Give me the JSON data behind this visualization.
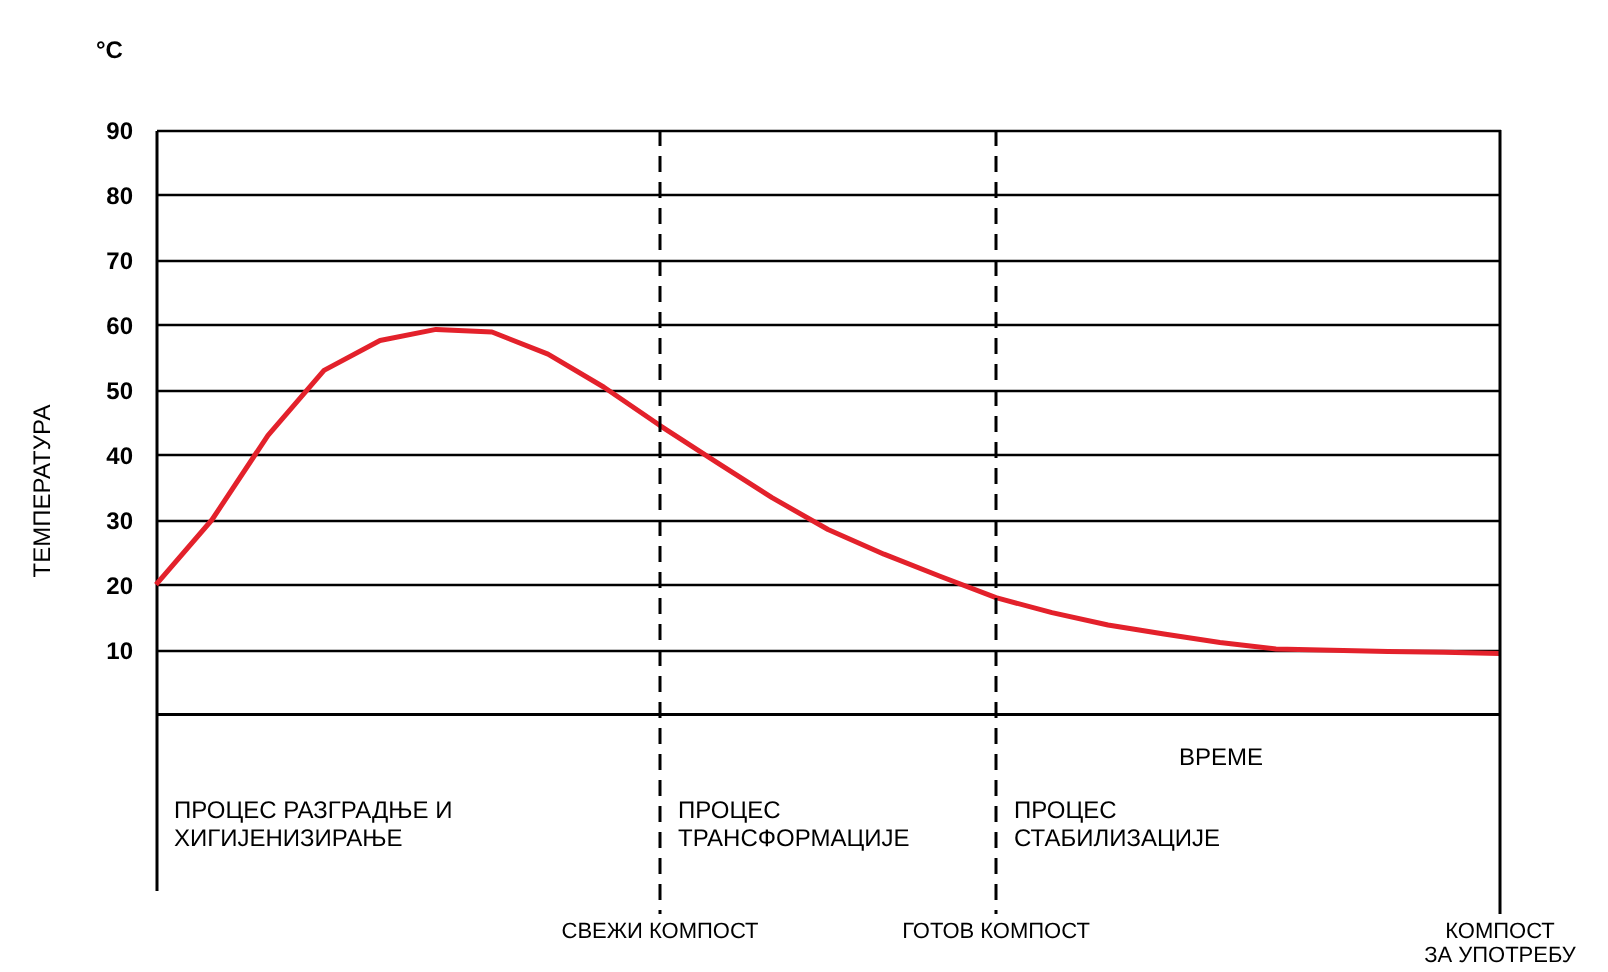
{
  "chart_data": {
    "type": "line",
    "ylabel": "ТЕМПЕРАТУРА",
    "xlabel": "ВРЕМЕ",
    "categories": [
      null,
      null,
      null,
      null,
      null,
      null,
      null,
      null,
      null,
      "СВЕЖИ КОМПОСТ",
      null,
      null,
      null,
      null,
      null,
      "ГОТОВ КОМПОСТ",
      null,
      null,
      null,
      null,
      null,
      null,
      null,
      null,
      "КОМПОСТ\nЗА УПОТРЕБУ"
    ],
    "series": [
      {
        "color": "#e3212b",
        "values": [
          20,
          30,
          43,
          53,
          57.6,
          59.3,
          58.9,
          55.5,
          50.4,
          44.5,
          38.9,
          33.4,
          28.5,
          24.7,
          21.3,
          18,
          15.7,
          13.8,
          12.4,
          11.1,
          10.1,
          9.9,
          9.7,
          9.6,
          9.4
        ]
      }
    ],
    "ylim": [
      -27,
      90
    ],
    "yticks": [
      10,
      20,
      30,
      40,
      50,
      60,
      70,
      80,
      90
    ],
    "grid": "y",
    "marker": "none",
    "line_style": "solid",
    "ref_lines": [
      {
        "axis": "y",
        "value": 0,
        "line_style": "solid",
        "color": "#000000"
      },
      {
        "axis": "x",
        "value": "СВЕЖИ КОМПОСТ",
        "line_style": "dashed",
        "color": "#000000"
      },
      {
        "axis": "x",
        "value": "ГОТОВ КОМПОСТ",
        "line_style": "dashed",
        "color": "#000000"
      },
      {
        "axis": "x",
        "value": "КОМПОСТ\nЗА УПОТРЕБУ",
        "line_style": "solid",
        "color": "#000000"
      }
    ],
    "annotations": [
      "°C",
      "ПРОЦЕС РАЗГРАДЊЕ И\nХИГИЈЕНИЗИРАЊЕ",
      "ПРОЦЕС\nТРАНСФОРМАЦИЈЕ",
      "ПРОЦЕС\nСТАБИЛИЗАЦИЈЕ"
    ]
  }
}
